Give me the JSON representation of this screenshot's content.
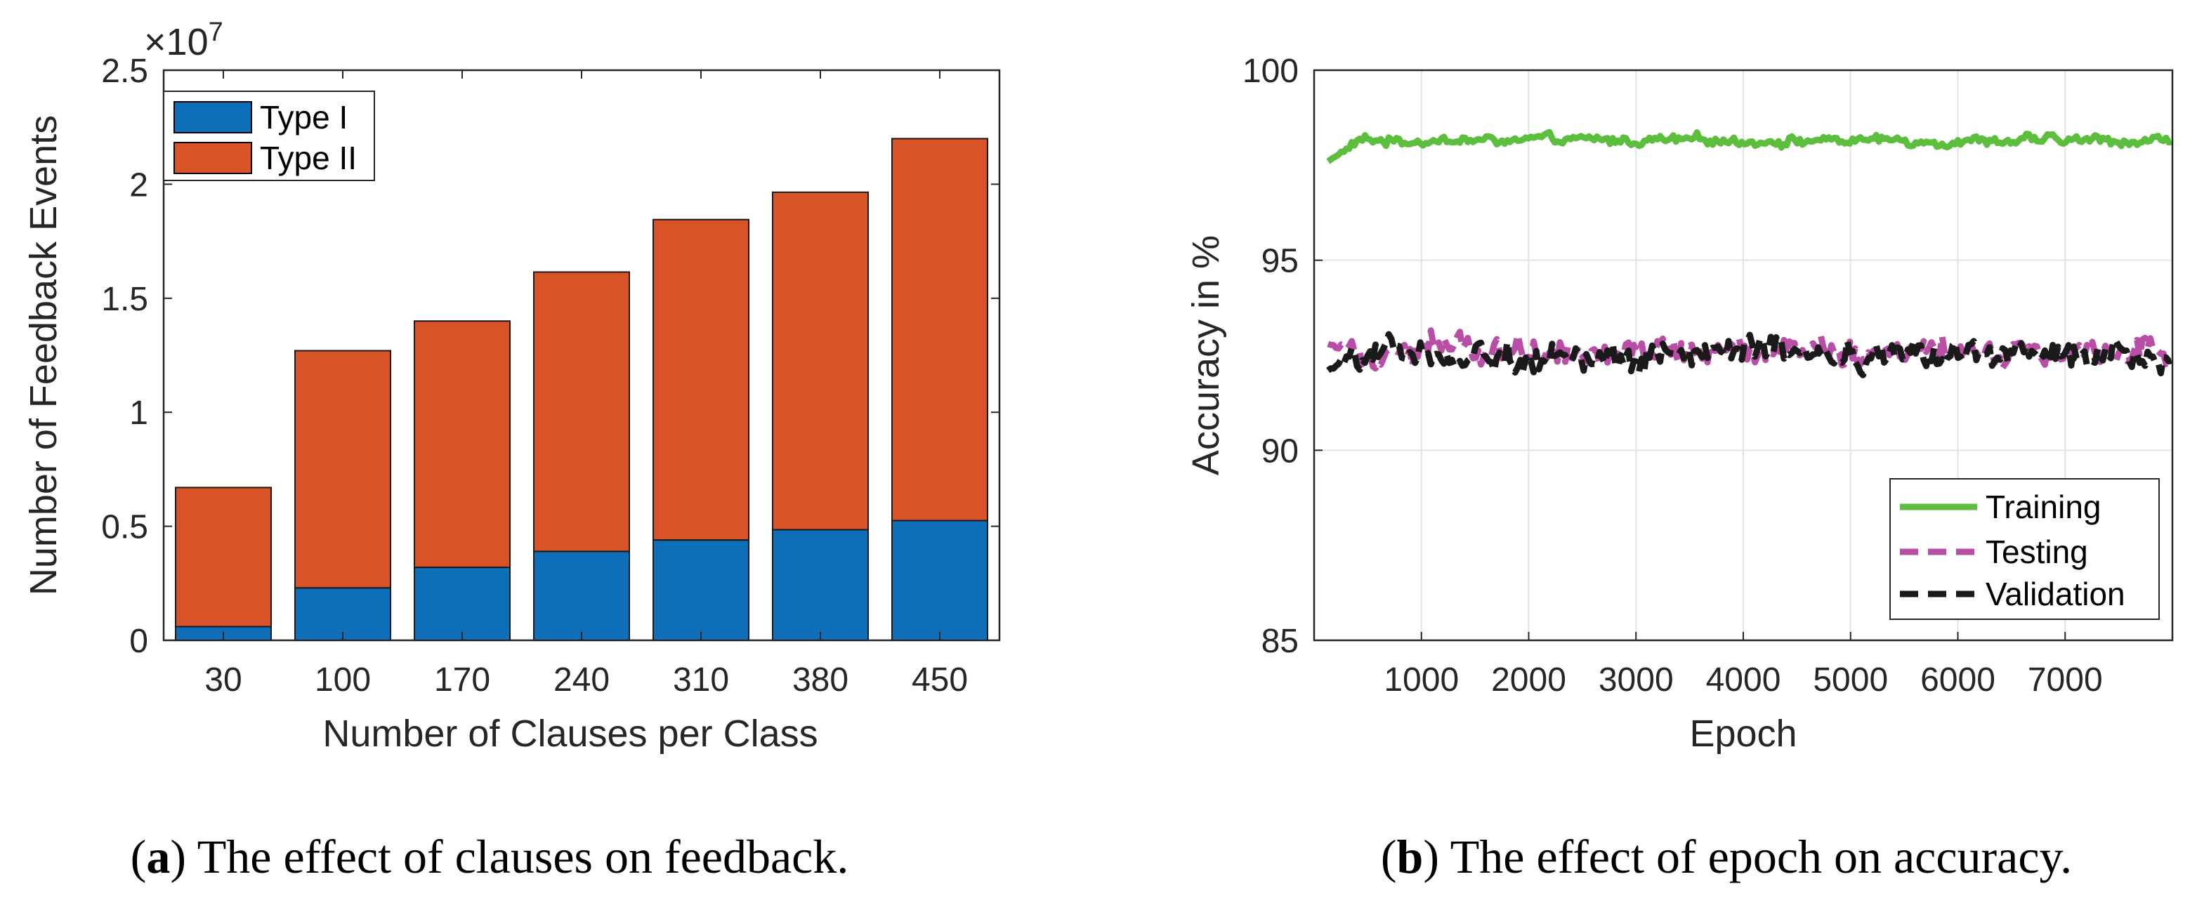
{
  "chart_data": [
    {
      "type": "bar",
      "stacked": true,
      "categories": [
        "30",
        "100",
        "170",
        "240",
        "310",
        "380",
        "450"
      ],
      "series": [
        {
          "name": "Type I",
          "color": "#0E6FB8",
          "values": [
            0.06,
            0.23,
            0.32,
            0.39,
            0.44,
            0.485,
            0.525
          ]
        },
        {
          "name": "Type II",
          "color": "#D95328",
          "values": [
            0.61,
            1.04,
            1.08,
            1.225,
            1.405,
            1.48,
            1.675
          ]
        }
      ],
      "xlabel": "Number of Clauses per Class",
      "ylabel": "Number of Feedback Events",
      "ylim": [
        0,
        2.5
      ],
      "yticks": [
        "0",
        "0.5",
        "1",
        "1.5",
        "2",
        "2.5"
      ],
      "yticks_values": [
        0,
        0.5,
        1,
        1.5,
        2,
        2.5
      ],
      "y_multiplier": "×10",
      "y_exponent": "7",
      "legend_position": "top-left",
      "grid": false,
      "caption_label": "a",
      "caption_text": " The effect of clauses on feedback."
    },
    {
      "type": "line",
      "xlim": [
        0,
        8000
      ],
      "ylim": [
        85,
        100
      ],
      "xticks": [
        "1000",
        "2000",
        "3000",
        "4000",
        "5000",
        "6000",
        "7000"
      ],
      "xticks_values": [
        1000,
        2000,
        3000,
        4000,
        5000,
        6000,
        7000
      ],
      "yticks": [
        "85",
        "90",
        "95",
        "100"
      ],
      "yticks_values": [
        85,
        90,
        95,
        100
      ],
      "xlabel": "Epoch",
      "ylabel": "Accuracy in %",
      "grid": true,
      "legend_position": "bottom-right",
      "series": [
        {
          "name": "Training",
          "color": "#5BBE3C",
          "style": "solid",
          "mean": 98.15,
          "amplitude": 0.12,
          "start": 97.6
        },
        {
          "name": "Testing",
          "color": "#B84EA6",
          "style": "dashed",
          "mean": 92.7,
          "amplitude": 0.35,
          "start": 92.8
        },
        {
          "name": "Validation",
          "color": "#1A1A1A",
          "style": "dashed",
          "mean": 92.5,
          "amplitude": 0.35,
          "start": 92.1
        }
      ],
      "caption_label": "b",
      "caption_text": " The effect of epoch on accuracy."
    }
  ]
}
